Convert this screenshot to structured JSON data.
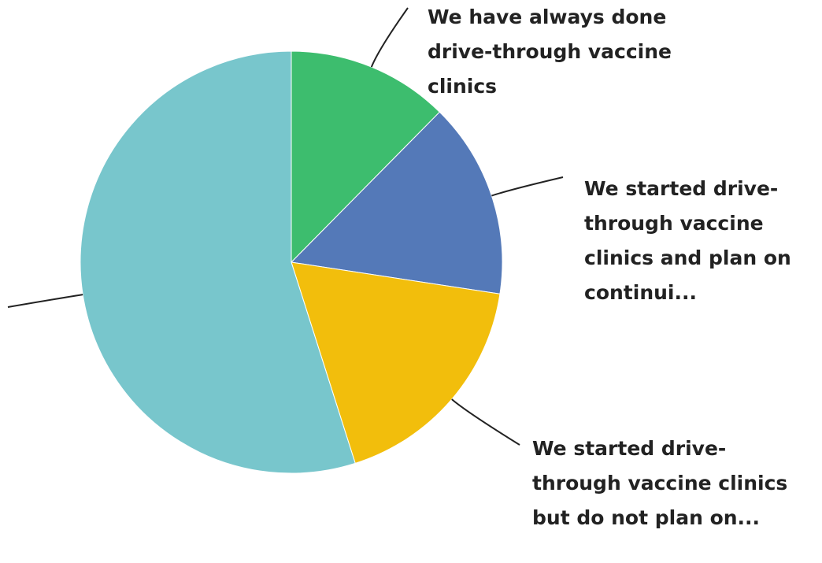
{
  "chart_data": {
    "type": "pie",
    "categories": [
      "We have always done drive-through vaccine clinics",
      "We started drive-through vaccine clinics and plan on continui...",
      "We started drive-through vaccine clinics but do not plan on...",
      null
    ],
    "values": [
      12.4,
      15,
      17.7,
      54.9
    ],
    "colors": [
      "#3dbd6e",
      "#5479b8",
      "#f2be0c",
      "#78c6cc"
    ]
  }
}
